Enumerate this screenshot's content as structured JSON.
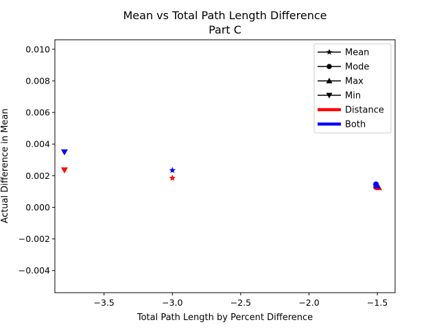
{
  "chart_data": {
    "type": "scatter",
    "title": "Mean vs Total Path Length Difference",
    "subtitle": "Part C",
    "xlabel": "Total Path Length by Percent Difference",
    "ylabel": "Actual Difference in Mean",
    "xlim": [
      -3.86,
      -1.37
    ],
    "ylim": [
      -0.0054,
      0.0106
    ],
    "xticks": [
      -3.5,
      -3.0,
      -2.5,
      -2.0,
      -1.5
    ],
    "xtick_labels": [
      "−3.5",
      "−3.0",
      "−2.5",
      "−2.0",
      "−1.5"
    ],
    "yticks": [
      -0.004,
      -0.002,
      0.0,
      0.002,
      0.004,
      0.006,
      0.008,
      0.01
    ],
    "ytick_labels": [
      "−0.004",
      "−0.002",
      "0.000",
      "0.002",
      "0.004",
      "0.006",
      "0.008",
      "0.010"
    ],
    "grid": false,
    "legend_placement": "top-right",
    "colors": {
      "Distance": "#ff0000",
      "Both": "#0000ff"
    },
    "legend": [
      {
        "label": "Mean",
        "kind": "marker",
        "marker": "star"
      },
      {
        "label": "Mode",
        "kind": "marker",
        "marker": "circle"
      },
      {
        "label": "Max",
        "kind": "marker",
        "marker": "triangle-up"
      },
      {
        "label": "Min",
        "kind": "marker",
        "marker": "triangle-down"
      },
      {
        "label": "Distance",
        "kind": "line",
        "color": "#ff0000"
      },
      {
        "label": "Both",
        "kind": "line",
        "color": "#0000ff"
      }
    ],
    "points": [
      {
        "x": -3.79,
        "y": 0.00236,
        "marker": "triangle-down",
        "group": "Distance"
      },
      {
        "x": -3.79,
        "y": 0.0035,
        "marker": "triangle-down",
        "group": "Both"
      },
      {
        "x": -3.0,
        "y": 0.00185,
        "marker": "star",
        "group": "Distance"
      },
      {
        "x": -3.0,
        "y": 0.00234,
        "marker": "star",
        "group": "Both"
      },
      {
        "x": -1.51,
        "y": 0.00128,
        "marker": "circle",
        "group": "Distance"
      },
      {
        "x": -1.49,
        "y": 0.00125,
        "marker": "triangle-up",
        "group": "Distance"
      },
      {
        "x": -1.51,
        "y": 0.00146,
        "marker": "circle",
        "group": "Both"
      },
      {
        "x": -1.5,
        "y": 0.00136,
        "marker": "triangle-up",
        "group": "Both"
      }
    ]
  }
}
